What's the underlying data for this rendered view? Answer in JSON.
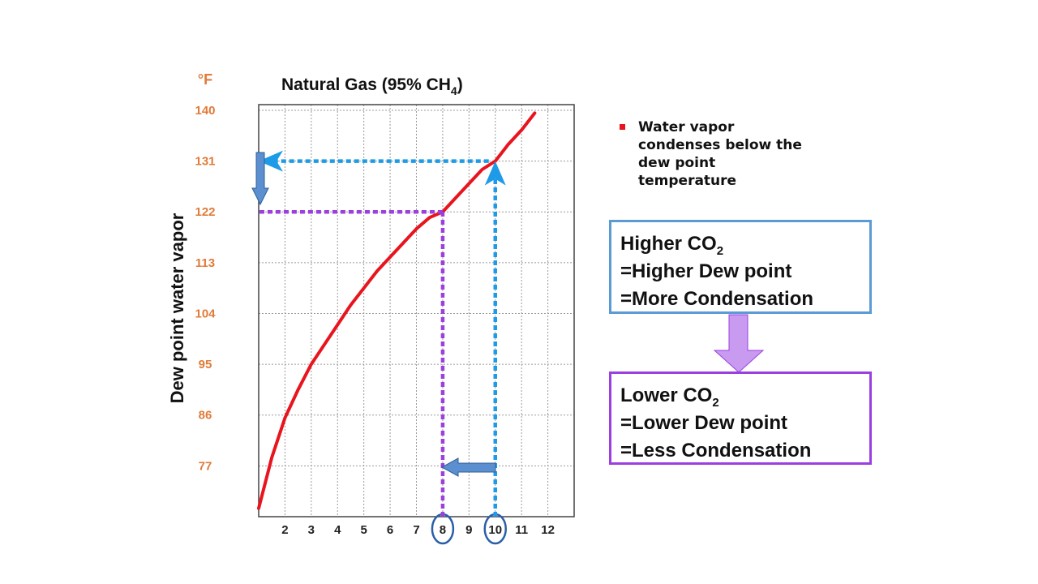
{
  "chart_data": {
    "type": "line",
    "title": "Natural Gas (95% CH",
    "title_sub": "4",
    "title_suffix": ")",
    "unit_label": "°F",
    "ylabel": "Dew point water vapor",
    "xlabel": "",
    "x_ticks": [
      2,
      3,
      4,
      5,
      6,
      7,
      8,
      9,
      10,
      11,
      12
    ],
    "y_ticks": [
      140,
      131,
      122,
      113,
      104,
      95,
      86,
      77
    ],
    "xlim": [
      1,
      13
    ],
    "ylim": [
      68,
      141
    ],
    "grid": true,
    "series": [
      {
        "color": "#e8141e",
        "x": [
          1.0,
          1.5,
          2.0,
          2.5,
          3.0,
          3.5,
          4.0,
          4.5,
          5.0,
          5.5,
          6.0,
          6.5,
          7.0,
          7.5,
          8.0,
          8.5,
          9.0,
          9.5,
          10.0,
          10.5,
          11.0,
          11.5
        ],
        "y": [
          69.5,
          78.5,
          85.5,
          90.5,
          95.0,
          98.5,
          102.0,
          105.5,
          108.5,
          111.5,
          114.0,
          116.5,
          119.0,
          121.0,
          122.0,
          124.5,
          127.0,
          129.5,
          131.0,
          134.0,
          136.5,
          139.5
        ]
      }
    ],
    "highlighted_x": [
      8,
      10
    ],
    "guides": [
      {
        "x": 10,
        "y": 131,
        "color": "#1e9be8",
        "direction": "up-then-left"
      },
      {
        "x": 8,
        "y": 122,
        "color": "#9b3fe0",
        "direction": "to-point"
      }
    ]
  },
  "annotations": {
    "bullet_text": "Water vapor condenses below the dew point temperature",
    "higher_box": {
      "line1": "Higher CO",
      "line1_sub": "2",
      "line2": "=Higher Dew point",
      "line3": "=More Condensation"
    },
    "lower_box": {
      "line1": "Lower CO",
      "line1_sub": "2",
      "line2": "=Lower Dew point",
      "line3": "=Less Condensation"
    }
  },
  "colors": {
    "curve": "#e8141e",
    "guide_blue": "#1e9be8",
    "guide_purple": "#9b3fe0",
    "axis_text": "#e07b39",
    "box_higher_border": "#5b9bd5",
    "box_lower_border": "#9b3fe0",
    "shift_arrow": "#5b8fcf",
    "down_arrow": "#c89af0"
  }
}
